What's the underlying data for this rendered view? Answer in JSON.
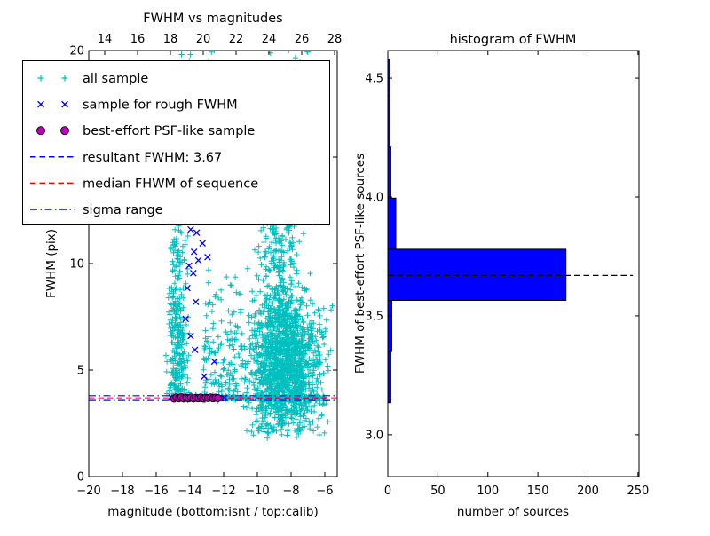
{
  "figure": {
    "background": "#ffffff"
  },
  "chart_data": [
    {
      "type": "scatter",
      "title": "FWHM vs magnitudes",
      "xlabel": "magnitude (bottom:isnt / top:calib)",
      "ylabel": "FWHM (pix)",
      "xlim": [
        -20,
        -5.263
      ],
      "ylim": [
        0,
        20
      ],
      "top_xlim": [
        13.027,
        28.162
      ],
      "x_ticks": [
        {
          "v": -20,
          "label": "−20"
        },
        {
          "v": -18,
          "label": "−18"
        },
        {
          "v": -16,
          "label": "−16"
        },
        {
          "v": -14,
          "label": "−14"
        },
        {
          "v": -12,
          "label": "−12"
        },
        {
          "v": -10,
          "label": "−10"
        },
        {
          "v": -8,
          "label": "−8"
        },
        {
          "v": -6,
          "label": "−6"
        }
      ],
      "top_ticks": [
        {
          "v": 14,
          "label": "14"
        },
        {
          "v": 16,
          "label": "16"
        },
        {
          "v": 18,
          "label": "18"
        },
        {
          "v": 20,
          "label": "20"
        },
        {
          "v": 22,
          "label": "22"
        },
        {
          "v": 24,
          "label": "24"
        },
        {
          "v": 26,
          "label": "26"
        },
        {
          "v": 28,
          "label": "28"
        }
      ],
      "y_ticks": [
        {
          "v": 0,
          "label": "0"
        },
        {
          "v": 5,
          "label": "5"
        },
        {
          "v": 10,
          "label": "10"
        },
        {
          "v": 15,
          "label": "15"
        },
        {
          "v": 20,
          "label": "20"
        }
      ],
      "lines": [
        {
          "y": 3.67,
          "color": "#0000ff",
          "style": "dashed",
          "name": "resultant-fwhm-line"
        },
        {
          "y": 3.7,
          "color": "#ff0000",
          "style": "dashed",
          "name": "median-fwhm-line"
        },
        {
          "y": 3.58,
          "color": "#0000ff",
          "style": "dashdot",
          "name": "sigma-lower-line"
        },
        {
          "y": 3.8,
          "color": "#0000ff",
          "style": "dashdot",
          "name": "sigma-upper-line"
        }
      ],
      "series": [
        {
          "name": "all sample",
          "marker": "plus",
          "color": "#00bfbf",
          "clusters": [
            {
              "count": 300,
              "x": {
                "dist": "gauss",
                "mu": -14.72,
                "sigma": 0.3,
                "min": -15.45,
                "max": -14.0
              },
              "y": {
                "dist": "absgauss",
                "base": 3.6,
                "scale": 4.2,
                "max": 20.35
              }
            },
            {
              "count": 1500,
              "x": {
                "dist": "gauss",
                "mu": -8.4,
                "sigma": 1.05,
                "min": -11.6,
                "max": -5.5
              },
              "y": {
                "dist": "gauss",
                "mu": 5.2,
                "sigma": 1.7,
                "min": 1.9,
                "max": 11.5
              }
            },
            {
              "count": 260,
              "x": {
                "dist": "gauss",
                "mu": -8.75,
                "sigma": 0.55,
                "min": -10.3,
                "max": -7.2
              },
              "y": {
                "dist": "uniform",
                "min": 7.0,
                "max": 13.6
              }
            },
            {
              "count": 130,
              "x": {
                "dist": "uniform",
                "min": -13.2,
                "max": -10.9
              },
              "y": {
                "dist": "absgauss",
                "base": 3.9,
                "scale": 2.6,
                "max": 12.5
              }
            },
            {
              "count": 260,
              "x": {
                "dist": "uniform",
                "min": -15.05,
                "max": -6.0
              },
              "y": {
                "dist": "gauss",
                "mu": 3.7,
                "sigma": 0.055,
                "min": 3.52,
                "max": 3.88
              }
            },
            {
              "count": 80,
              "x": {
                "dist": "uniform",
                "min": -14.9,
                "max": -6.4
              },
              "y": {
                "dist": "uniform",
                "min": 11.8,
                "max": 20.3
              }
            },
            {
              "count": 7,
              "x": {
                "dist": "uniform",
                "min": -10.2,
                "max": -7.4
              },
              "y": {
                "dist": "uniform",
                "min": 1.4,
                "max": 2.7
              }
            },
            {
              "count": 4,
              "x": {
                "dist": "uniform",
                "min": -14.7,
                "max": -14.2
              },
              "y": {
                "dist": "uniform",
                "min": 19.6,
                "max": 20.3
              }
            }
          ]
        },
        {
          "name": "sample for rough FWHM",
          "marker": "x",
          "color": "#0000ff",
          "points": [
            [
              -13.95,
              11.6
            ],
            [
              -13.6,
              11.45
            ],
            [
              -13.25,
              10.95
            ],
            [
              -13.75,
              10.55
            ],
            [
              -13.5,
              10.15
            ],
            [
              -14.05,
              9.9
            ],
            [
              -13.8,
              9.55
            ],
            [
              -12.95,
              10.3
            ],
            [
              -14.15,
              8.85
            ],
            [
              -13.65,
              8.2
            ],
            [
              -14.25,
              7.4
            ],
            [
              -13.95,
              6.6
            ],
            [
              -13.7,
              5.95
            ],
            [
              -12.55,
              5.4
            ],
            [
              -13.15,
              4.7
            ],
            [
              -15.1,
              3.72
            ],
            [
              -14.8,
              3.68
            ],
            [
              -14.55,
              3.7
            ],
            [
              -14.3,
              3.66
            ],
            [
              -14.0,
              3.73
            ],
            [
              -13.7,
              3.69
            ],
            [
              -13.4,
              3.71
            ],
            [
              -13.1,
              3.67
            ],
            [
              -12.8,
              3.7
            ],
            [
              -12.5,
              3.72
            ],
            [
              -12.2,
              3.68
            ],
            [
              -11.95,
              3.7
            ]
          ]
        },
        {
          "name": "best-effort PSF-like sample",
          "marker": "circle",
          "color": "#bf00bf",
          "edge": "#000000",
          "points": [
            [
              -14.95,
              3.67
            ],
            [
              -14.805,
              3.72
            ],
            [
              -14.66,
              3.68
            ],
            [
              -14.515,
              3.73
            ],
            [
              -14.37,
              3.67
            ],
            [
              -14.225,
              3.71
            ],
            [
              -14.08,
              3.68
            ],
            [
              -13.935,
              3.72
            ],
            [
              -13.79,
              3.67
            ],
            [
              -13.645,
              3.7
            ],
            [
              -13.5,
              3.68
            ],
            [
              -13.355,
              3.72
            ],
            [
              -13.21,
              3.67
            ],
            [
              -13.065,
              3.71
            ],
            [
              -12.92,
              3.69
            ],
            [
              -12.775,
              3.72
            ],
            [
              -12.63,
              3.68
            ],
            [
              -12.485,
              3.71
            ],
            [
              -12.34,
              3.69
            ]
          ]
        }
      ],
      "legend": {
        "entries": [
          {
            "label": "all sample",
            "marker": "plus",
            "color": "#00bfbf"
          },
          {
            "label": "sample for rough FWHM",
            "marker": "x",
            "color": "#0000ff"
          },
          {
            "label": "best-effort PSF-like sample",
            "marker": "circle",
            "color": "#bf00bf"
          },
          {
            "label": "resultant FWHM: 3.67",
            "marker": "dashed",
            "color": "#0000ff"
          },
          {
            "label": "median FHWM of sequence",
            "marker": "dashed",
            "color": "#ff0000"
          },
          {
            "label": "sigma range",
            "marker": "dashdot",
            "color": "#0000ff"
          }
        ]
      }
    },
    {
      "type": "bar",
      "orientation": "horizontal",
      "title": "histogram of FWHM",
      "xlabel": "number of sources",
      "ylabel": "FWHM of best-effort PSF-like sources",
      "xlim": [
        0,
        251
      ],
      "ylim": [
        2.824,
        4.616
      ],
      "x_ticks": [
        {
          "v": 0,
          "label": "0"
        },
        {
          "v": 50,
          "label": "50"
        },
        {
          "v": 100,
          "label": "100"
        },
        {
          "v": 150,
          "label": "150"
        },
        {
          "v": 200,
          "label": "200"
        },
        {
          "v": 250,
          "label": "250"
        }
      ],
      "y_ticks": [
        {
          "v": 3.0,
          "label": "3.0"
        },
        {
          "v": 3.5,
          "label": "3.5"
        },
        {
          "v": 4.0,
          "label": "4.0"
        },
        {
          "v": 4.5,
          "label": "4.5"
        }
      ],
      "bar_color": "#0000ff",
      "bins": [
        {
          "lo": 3.135,
          "hi": 3.35,
          "count": 3
        },
        {
          "lo": 3.35,
          "hi": 3.565,
          "count": 4
        },
        {
          "lo": 3.565,
          "hi": 3.78,
          "count": 178
        },
        {
          "lo": 3.78,
          "hi": 3.995,
          "count": 8
        },
        {
          "lo": 3.995,
          "hi": 4.21,
          "count": 3
        },
        {
          "lo": 4.21,
          "hi": 4.425,
          "count": 2
        },
        {
          "lo": 4.425,
          "hi": 4.58,
          "count": 2
        }
      ],
      "median_line": {
        "y": 3.67,
        "x_start": 0,
        "x_end": 245,
        "color": "#000000",
        "style": "dashed"
      }
    }
  ]
}
